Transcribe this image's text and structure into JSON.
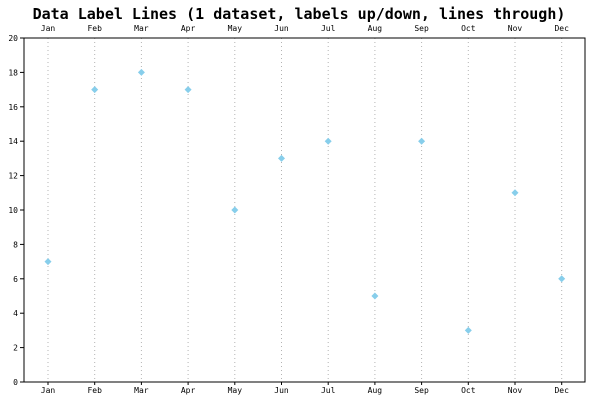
{
  "chart_data": {
    "type": "scatter",
    "title": "Data Label Lines (1 dataset, labels up/down, lines through)",
    "categories": [
      "Jan",
      "Feb",
      "Mar",
      "Apr",
      "May",
      "Jun",
      "Jul",
      "Aug",
      "Sep",
      "Oct",
      "Nov",
      "Dec"
    ],
    "series": [
      {
        "values": [
          7,
          17,
          18,
          17,
          10,
          13,
          14,
          5,
          14,
          3,
          11,
          6
        ]
      }
    ],
    "ylim": [
      0,
      20
    ],
    "yticks": [
      0,
      2,
      4,
      6,
      8,
      10,
      12,
      14,
      16,
      18,
      20
    ],
    "xlabel": "",
    "ylabel": "",
    "grid": "vertical-dotted",
    "colors": {
      "marker": "#87ceeb",
      "grid": "#b4b4b4",
      "axis": "#000000"
    }
  }
}
